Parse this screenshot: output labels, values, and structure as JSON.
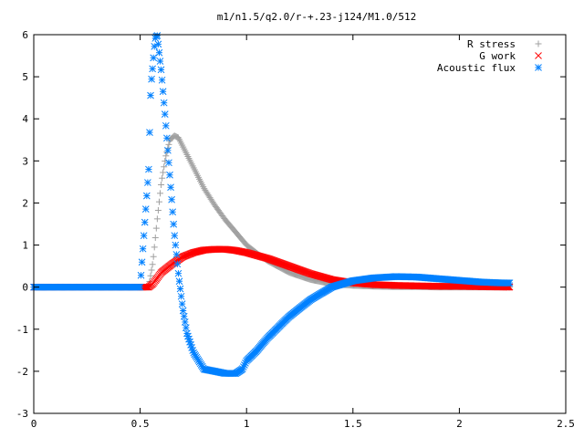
{
  "chart_data": {
    "type": "scatter",
    "title": "m1/n1.5/q2.0/r-+.23-j124/M1.0/512",
    "xlabel": "",
    "ylabel": "",
    "xlim": [
      0,
      2.5
    ],
    "ylim": [
      -3,
      6
    ],
    "xticks": [
      "0",
      "0.5",
      "1",
      "1.5",
      "2",
      "2.5"
    ],
    "yticks": [
      "-3",
      "-2",
      "-1",
      "0",
      "1",
      "2",
      "3",
      "4",
      "5",
      "6"
    ],
    "legend_position": "top-right",
    "grid": false,
    "series": [
      {
        "name": "R stress",
        "marker": "plus",
        "color": "#a0a0a0",
        "x": [
          0.0,
          0.1,
          0.2,
          0.3,
          0.4,
          0.5,
          0.54,
          0.56,
          0.58,
          0.6,
          0.62,
          0.64,
          0.66,
          0.68,
          0.7,
          0.75,
          0.8,
          0.85,
          0.9,
          0.95,
          1.0,
          1.05,
          1.1,
          1.2,
          1.3,
          1.4,
          1.5,
          1.6,
          1.7,
          1.8,
          1.9,
          2.0,
          2.1,
          2.24
        ],
        "y": [
          0.0,
          0.0,
          0.0,
          0.0,
          0.0,
          0.0,
          0.0,
          0.6,
          1.6,
          2.5,
          3.1,
          3.5,
          3.6,
          3.55,
          3.35,
          2.85,
          2.35,
          1.95,
          1.6,
          1.3,
          1.0,
          0.8,
          0.62,
          0.35,
          0.18,
          0.08,
          0.04,
          0.02,
          0.01,
          0.01,
          0.0,
          0.0,
          0.0,
          0.0
        ]
      },
      {
        "name": "G work",
        "marker": "cross",
        "color": "#ff0000",
        "x": [
          0.0,
          0.1,
          0.2,
          0.3,
          0.4,
          0.5,
          0.54,
          0.56,
          0.6,
          0.65,
          0.7,
          0.75,
          0.8,
          0.85,
          0.9,
          0.95,
          1.0,
          1.1,
          1.2,
          1.3,
          1.4,
          1.5,
          1.6,
          1.7,
          1.8,
          1.9,
          2.0,
          2.1,
          2.24
        ],
        "y": [
          0.0,
          0.0,
          0.0,
          0.0,
          0.0,
          0.0,
          0.0,
          0.08,
          0.35,
          0.55,
          0.72,
          0.82,
          0.88,
          0.9,
          0.9,
          0.87,
          0.82,
          0.68,
          0.5,
          0.32,
          0.18,
          0.1,
          0.06,
          0.04,
          0.03,
          0.02,
          0.02,
          0.01,
          0.0
        ]
      },
      {
        "name": "Acoustic flux",
        "marker": "star",
        "color": "#0080ff",
        "x": [
          0.0,
          0.1,
          0.2,
          0.3,
          0.4,
          0.5,
          0.54,
          0.55,
          0.56,
          0.57,
          0.58,
          0.6,
          0.62,
          0.64,
          0.66,
          0.68,
          0.7,
          0.72,
          0.75,
          0.8,
          0.85,
          0.9,
          0.95,
          0.98,
          1.0,
          1.05,
          1.1,
          1.2,
          1.3,
          1.4,
          1.5,
          1.6,
          1.7,
          1.8,
          1.9,
          2.0,
          2.1,
          2.2,
          2.24
        ],
        "y": [
          0.0,
          0.0,
          0.0,
          0.0,
          0.0,
          0.0,
          2.8,
          4.75,
          5.3,
          5.9,
          6.0,
          5.1,
          3.9,
          2.6,
          1.3,
          0.3,
          -0.5,
          -1.1,
          -1.55,
          -1.95,
          -2.0,
          -2.05,
          -2.05,
          -1.95,
          -1.75,
          -1.5,
          -1.2,
          -0.7,
          -0.3,
          0.0,
          0.15,
          0.22,
          0.25,
          0.24,
          0.2,
          0.16,
          0.12,
          0.1,
          0.1
        ]
      }
    ]
  }
}
